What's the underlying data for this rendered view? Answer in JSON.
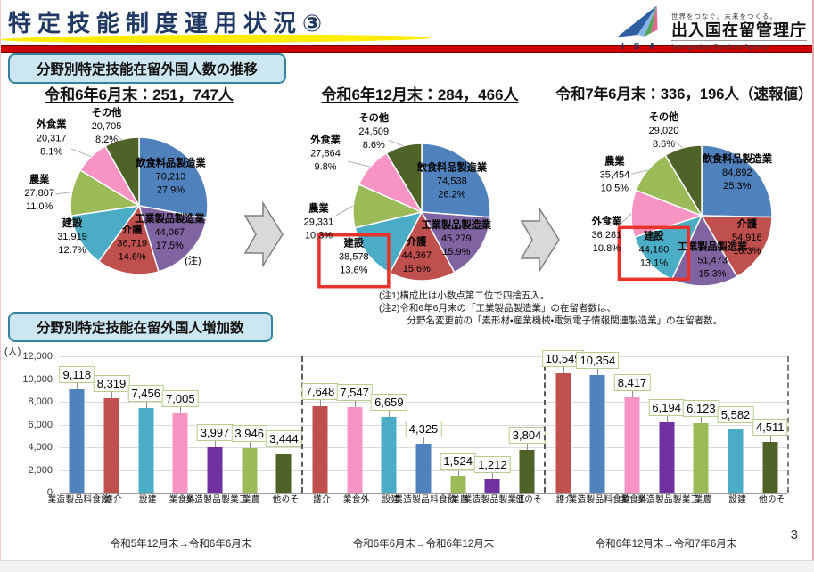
{
  "page_number": "3",
  "header": {
    "title": "特定技能制度運用状況③",
    "logo": {
      "isa": "I S A",
      "tagline": "世界をつなぐ。未来をつくる。",
      "agency_ja": "出入国在留管理庁",
      "agency_en": "Immigration Services Agency"
    }
  },
  "section_transition": {
    "heading": "分野別特定技能在留外国人数の推移",
    "notes": [
      "(注1)構成比は小数点第二位で四捨五入。",
      "(注2)令和6年6月末の「工業製品製造業」の在留者数は、",
      "　　　分野名変更前の「素形材・産業機械・電気電子情報関連製造業」の在留者数。"
    ]
  },
  "section_increase": {
    "heading": "分野別特定技能在留外国人増加数"
  },
  "colors": {
    "food_mfg": "#4f81bd",
    "care": "#c0504d",
    "construction": "#4bacc6",
    "restaurant": "#f894c4",
    "industrial_mfg_pie": "#8064a2",
    "industrial_mfg_bar": "#7030a0",
    "agriculture": "#9bbb59",
    "other": "#4f6228",
    "highlight_box": "#e8332a",
    "section_box_bg": "#cde7f2",
    "section_box_border": "#31849b",
    "title_color": "#1f3864",
    "header_rule": "#cc0000"
  },
  "chart_data": [
    {
      "type": "pie",
      "title": "令和6年6月末：251，747人",
      "slices": [
        {
          "label": "飲食料品製造業",
          "value": "70,213",
          "pct": 27.9,
          "pct_label": "27.9%",
          "color": "#4f81bd",
          "label_pos": "inside"
        },
        {
          "label": "工業製品製造業",
          "value": "44,067",
          "pct": 17.5,
          "pct_label": "17.5%",
          "color": "#8064a2",
          "label_pos": "inside",
          "note_mark": "(注)"
        },
        {
          "label": "介護",
          "value": "36,719",
          "pct": 14.6,
          "pct_label": "14.6%",
          "color": "#c0504d",
          "label_pos": "inside"
        },
        {
          "label": "建設",
          "value": "31,919",
          "pct": 12.7,
          "pct_label": "12.7%",
          "color": "#4bacc6",
          "label_pos": "outside"
        },
        {
          "label": "農業",
          "value": "27,807",
          "pct": 11.0,
          "pct_label": "11.0%",
          "color": "#9bbb59",
          "label_pos": "outside"
        },
        {
          "label": "外食業",
          "value": "20,317",
          "pct": 8.1,
          "pct_label": "8.1%",
          "color": "#f894c4",
          "label_pos": "outside"
        },
        {
          "label": "その他",
          "value": "20,705",
          "pct": 8.2,
          "pct_label": "8.2%",
          "color": "#4f6228",
          "label_pos": "outside"
        }
      ]
    },
    {
      "type": "pie",
      "title": "令和6年12月末：284，466人",
      "slices": [
        {
          "label": "飲食料品製造業",
          "value": "74,538",
          "pct": 26.2,
          "pct_label": "26.2%",
          "color": "#4f81bd",
          "label_pos": "inside"
        },
        {
          "label": "工業製品製造業",
          "value": "45,279",
          "pct": 15.9,
          "pct_label": "15.9%",
          "color": "#8064a2",
          "label_pos": "inside"
        },
        {
          "label": "介護",
          "value": "44,367",
          "pct": 15.6,
          "pct_label": "15.6%",
          "color": "#c0504d",
          "label_pos": "inside"
        },
        {
          "label": "建設",
          "value": "38,578",
          "pct": 13.6,
          "pct_label": "13.6%",
          "color": "#4bacc6",
          "label_pos": "outside",
          "highlight": true
        },
        {
          "label": "農業",
          "value": "29,331",
          "pct": 10.3,
          "pct_label": "10.3%",
          "color": "#9bbb59",
          "label_pos": "outside"
        },
        {
          "label": "外食業",
          "value": "27,864",
          "pct": 9.8,
          "pct_label": "9.8%",
          "color": "#f894c4",
          "label_pos": "outside"
        },
        {
          "label": "その他",
          "value": "24,509",
          "pct": 8.6,
          "pct_label": "8.6%",
          "color": "#4f6228",
          "label_pos": "outside"
        }
      ]
    },
    {
      "type": "pie",
      "title": "令和7年6月末：336，196人（速報値）",
      "slices": [
        {
          "label": "飲食料品製造業",
          "value": "84,892",
          "pct": 25.3,
          "pct_label": "25.3%",
          "color": "#4f81bd",
          "label_pos": "inside"
        },
        {
          "label": "介護",
          "value": "54,916",
          "pct": 16.3,
          "pct_label": "16.3%",
          "color": "#c0504d",
          "label_pos": "inside"
        },
        {
          "label": "工業製品製造業",
          "value": "51,473",
          "pct": 15.3,
          "pct_label": "15.3%",
          "color": "#8064a2",
          "label_pos": "inside"
        },
        {
          "label": "建設",
          "value": "44,160",
          "pct": 13.1,
          "pct_label": "13.1%",
          "color": "#4bacc6",
          "label_pos": "inside",
          "highlight": true
        },
        {
          "label": "外食業",
          "value": "36,281",
          "pct": 10.8,
          "pct_label": "10.8%",
          "color": "#f894c4",
          "label_pos": "outside"
        },
        {
          "label": "農業",
          "value": "35,454",
          "pct": 10.5,
          "pct_label": "10.5%",
          "color": "#9bbb59",
          "label_pos": "outside"
        },
        {
          "label": "その他",
          "value": "29,020",
          "pct": 8.6,
          "pct_label": "8.6%",
          "color": "#4f6228",
          "label_pos": "outside"
        }
      ]
    },
    {
      "type": "bar",
      "unit": "(人)",
      "ylim": [
        0,
        12000
      ],
      "ytick_step": 2000,
      "yticks": [
        "0",
        "2,000",
        "4,000",
        "6,000",
        "8,000",
        "10,000",
        "12,000"
      ],
      "grid": true,
      "groups": [
        {
          "label": "令和5年12月末→令和6年6月末",
          "bars": [
            {
              "category": "飲食料品製造業",
              "value": 9118,
              "value_label": "9,118",
              "color": "#4f81bd"
            },
            {
              "category": "介護",
              "value": 8319,
              "value_label": "8,319",
              "color": "#c0504d"
            },
            {
              "category": "建設",
              "value": 7456,
              "value_label": "7,456",
              "color": "#4bacc6"
            },
            {
              "category": "外食業",
              "value": 7005,
              "value_label": "7,005",
              "color": "#f894c4"
            },
            {
              "category": "工業製品製造業",
              "value": 3997,
              "value_label": "3,997",
              "color": "#7030a0"
            },
            {
              "category": "農業",
              "value": 3946,
              "value_label": "3,946",
              "color": "#9bbb59"
            },
            {
              "category": "その他",
              "value": 3444,
              "value_label": "3,444",
              "color": "#4f6228"
            }
          ]
        },
        {
          "label": "令和6年6月末→令和6年12月末",
          "bars": [
            {
              "category": "介護",
              "value": 7648,
              "value_label": "7,648",
              "color": "#c0504d"
            },
            {
              "category": "外食業",
              "value": 7547,
              "value_label": "7,547",
              "color": "#f894c4"
            },
            {
              "category": "建設",
              "value": 6659,
              "value_label": "6,659",
              "color": "#4bacc6"
            },
            {
              "category": "飲食料品製造業",
              "value": 4325,
              "value_label": "4,325",
              "color": "#4f81bd"
            },
            {
              "category": "農業",
              "value": 1524,
              "value_label": "1,524",
              "color": "#9bbb59"
            },
            {
              "category": "工業製品製造業",
              "value": 1212,
              "value_label": "1,212",
              "color": "#7030a0"
            },
            {
              "category": "その他",
              "value": 3804,
              "value_label": "3,804",
              "color": "#4f6228"
            }
          ]
        },
        {
          "label": "令和6年12月末→令和7年6月末",
          "bars": [
            {
              "category": "介護",
              "value": 10549,
              "value_label": "10,549",
              "color": "#c0504d"
            },
            {
              "category": "飲食料品製造業",
              "value": 10354,
              "value_label": "10,354",
              "color": "#4f81bd"
            },
            {
              "category": "外食業",
              "value": 8417,
              "value_label": "8,417",
              "color": "#f894c4"
            },
            {
              "category": "工業製品製造業",
              "value": 6194,
              "value_label": "6,194",
              "color": "#7030a0"
            },
            {
              "category": "農業",
              "value": 6123,
              "value_label": "6,123",
              "color": "#9bbb59"
            },
            {
              "category": "建設",
              "value": 5582,
              "value_label": "5,582",
              "color": "#4bacc6"
            },
            {
              "category": "その他",
              "value": 4511,
              "value_label": "4,511",
              "color": "#4f6228"
            }
          ]
        }
      ]
    }
  ]
}
